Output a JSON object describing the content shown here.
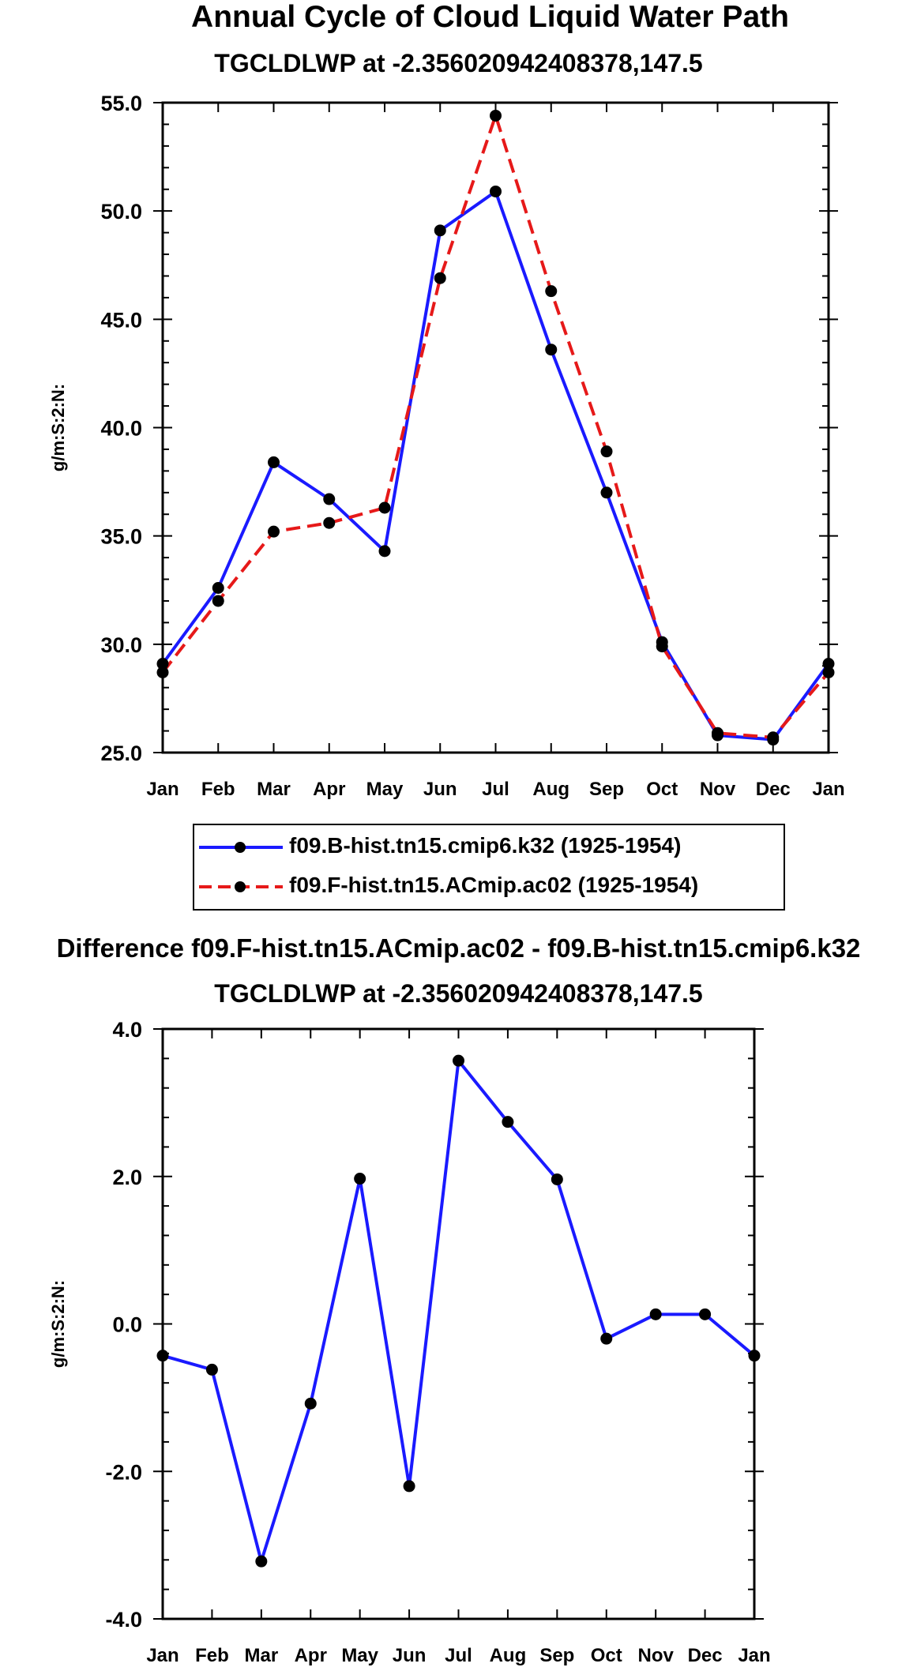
{
  "chart_data": [
    {
      "type": "line",
      "title": "Annual Cycle of Cloud Liquid Water Path",
      "subtitle": "TGCLDLWP at -2.356020942408378,147.5",
      "ylabel": "g/m:S:2:N:",
      "xlabel": "",
      "categories": [
        "Jan",
        "Feb",
        "Mar",
        "Apr",
        "May",
        "Jun",
        "Jul",
        "Aug",
        "Sep",
        "Oct",
        "Nov",
        "Dec",
        "Jan"
      ],
      "ylim": [
        25.0,
        55.0
      ],
      "yticks": [
        25.0,
        30.0,
        35.0,
        40.0,
        45.0,
        50.0,
        55.0
      ],
      "ytick_labels": [
        "25.0",
        "30.0",
        "35.0",
        "40.0",
        "45.0",
        "50.0",
        "55.0"
      ],
      "series": [
        {
          "name": "f09.B-hist.tn15.cmip6.k32 (1925-1954)",
          "color": "#1a1aff",
          "style": "solid",
          "values": [
            29.1,
            32.6,
            38.4,
            36.7,
            34.3,
            49.1,
            50.9,
            43.6,
            37.0,
            30.1,
            25.8,
            25.6,
            29.1
          ]
        },
        {
          "name": "f09.F-hist.tn15.ACmip.ac02 (1925-1954)",
          "color": "#e61919",
          "style": "dashed",
          "values": [
            28.7,
            32.0,
            35.2,
            35.6,
            36.3,
            46.9,
            54.4,
            46.3,
            38.9,
            29.9,
            25.9,
            25.7,
            28.7
          ]
        }
      ],
      "legend_position": "below"
    },
    {
      "type": "line",
      "title": "Difference f09.F-hist.tn15.ACmip.ac02 - f09.B-hist.tn15.cmip6.k32",
      "subtitle": "TGCLDLWP at -2.356020942408378,147.5",
      "ylabel": "g/m:S:2:N:",
      "xlabel": "",
      "categories": [
        "Jan",
        "Feb",
        "Mar",
        "Apr",
        "May",
        "Jun",
        "Jul",
        "Aug",
        "Sep",
        "Oct",
        "Nov",
        "Dec",
        "Jan"
      ],
      "ylim": [
        -4.0,
        4.0
      ],
      "yticks": [
        -4.0,
        -2.0,
        0.0,
        2.0,
        4.0
      ],
      "ytick_labels": [
        "-4.0",
        "-2.0",
        "0.0",
        "2.0",
        "4.0"
      ],
      "series": [
        {
          "name": "difference",
          "color": "#1a1aff",
          "style": "solid",
          "values": [
            -0.43,
            -0.62,
            -3.22,
            -1.08,
            1.97,
            -2.2,
            3.57,
            2.74,
            1.96,
            -0.2,
            0.13,
            0.13,
            -0.43
          ]
        }
      ]
    }
  ]
}
